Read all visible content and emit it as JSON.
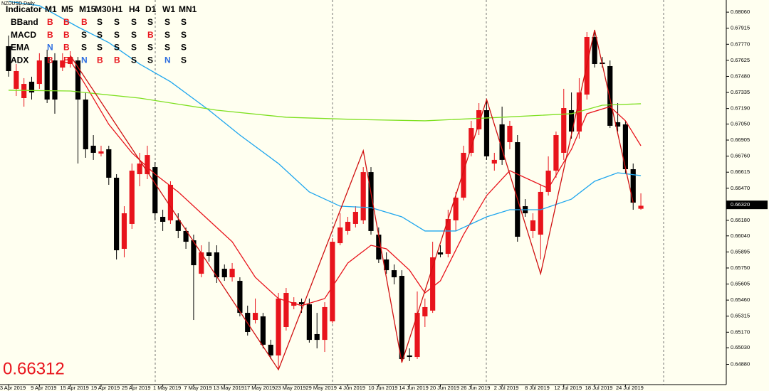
{
  "chart_data": {
    "type": "candlestick",
    "title": "NZDUSD,Daily",
    "categories": [
      "3 Apr 2019",
      null,
      null,
      null,
      "9 Apr 2019",
      null,
      null,
      null,
      "15 Apr 2019",
      null,
      null,
      null,
      "19 Apr 2019",
      null,
      null,
      null,
      "25 Apr 2019",
      null,
      null,
      null,
      "1 May 2019",
      null,
      null,
      null,
      "7 May 2019",
      null,
      null,
      null,
      "13 May 2019",
      null,
      null,
      null,
      "17 May 2019",
      null,
      null,
      null,
      "23 May 2019",
      null,
      null,
      null,
      "29 May 2019",
      null,
      null,
      null,
      "4 Jun 2019",
      null,
      null,
      null,
      "10 Jun 2019",
      null,
      null,
      null,
      "14 Jun 2019",
      null,
      null,
      null,
      "20 Jun 2019",
      null,
      null,
      null,
      "26 Jun 2019",
      null,
      null,
      null,
      "2 Jul 2019",
      null,
      null,
      null,
      "8 Jul 2019",
      null,
      null,
      null,
      "12 Jul 2019",
      null,
      null,
      null,
      "18 Jul 2019",
      null,
      null,
      null,
      "24 Jul 2019",
      null,
      null
    ],
    "open": [
      0.67753,
      0.67368,
      0.67284,
      0.67432,
      0.67412,
      0.67656,
      0.67624,
      0.6756,
      0.67592,
      0.67624,
      0.67271,
      0.66854,
      0.66783,
      0.66822,
      0.66565,
      0.65923,
      0.66148,
      0.66597,
      0.66597,
      0.66661,
      0.66212,
      0.6618,
      0.6618,
      0.66084,
      0.66,
      0.65698,
      0.65891,
      0.65891,
      0.65743,
      0.65666,
      0.65634,
      0.65345,
      0.65281,
      0.65313,
      0.65057,
      0.6496,
      0.65217,
      0.65409,
      0.65441,
      0.65422,
      0.65153,
      0.65101,
      0.65268,
      0.65974,
      0.66084,
      0.66148,
      0.6618,
      0.66616,
      0.66051,
      0.65827,
      0.6573,
      0.65679,
      0.6496,
      0.64947,
      0.65313,
      0.65365,
      0.65891,
      0.65878,
      0.6618,
      0.66385,
      0.6679,
      0.67002,
      0.67175,
      0.66693,
      0.67047,
      0.66886,
      0.66886,
      0.66308,
      0.66084,
      0.66051,
      0.66437,
      0.66629,
      0.6679,
      0.67175,
      0.66982,
      0.67316,
      0.67836,
      0.67605,
      0.67573,
      0.67066,
      0.67047,
      0.66642,
      0.66285
    ],
    "high": [
      0.67849,
      0.67592,
      0.67464,
      0.67477,
      0.67689,
      0.67721,
      0.67689,
      0.67689,
      0.67708,
      0.67656,
      0.67335,
      0.6695,
      0.66854,
      0.66854,
      0.66597,
      0.66308,
      0.66693,
      0.6679,
      0.66854,
      0.66706,
      0.66276,
      0.66533,
      0.66244,
      0.66116,
      0.66051,
      0.65955,
      0.65987,
      0.65955,
      0.65782,
      0.65795,
      0.65666,
      0.6541,
      0.65474,
      0.65345,
      0.65102,
      0.65525,
      0.6557,
      0.65486,
      0.65474,
      0.65474,
      0.65345,
      0.65441,
      0.66019,
      0.66244,
      0.66212,
      0.66308,
      0.66661,
      0.66661,
      0.66116,
      0.65891,
      0.65782,
      0.6573,
      0.65024,
      0.65538,
      0.65474,
      0.65987,
      0.65955,
      0.66276,
      0.66437,
      0.66854,
      0.67079,
      0.67239,
      0.67271,
      0.6679,
      0.67207,
      0.67079,
      0.6695,
      0.66372,
      0.66244,
      0.66501,
      0.66758,
      0.66982,
      0.67368,
      0.67335,
      0.67464,
      0.67881,
      0.679,
      0.67656,
      0.67624,
      0.67239,
      0.67079,
      0.66693,
      0.66424
    ],
    "low": [
      0.67477,
      0.67303,
      0.67207,
      0.67271,
      0.67368,
      0.67239,
      0.67143,
      0.67528,
      0.6756,
      0.66693,
      0.66745,
      0.66726,
      0.66758,
      0.66501,
      0.65827,
      0.65846,
      0.66103,
      0.66488,
      0.66552,
      0.6618,
      0.66084,
      0.66148,
      0.66019,
      0.65923,
      0.65281,
      0.65666,
      0.65807,
      0.65615,
      0.65634,
      0.65628,
      0.65313,
      0.6514,
      0.65249,
      0.65024,
      0.64928,
      0.64832,
      0.65185,
      0.65377,
      0.65345,
      0.65076,
      0.65024,
      0.64992,
      0.65249,
      0.65955,
      0.66051,
      0.66116,
      0.66148,
      0.66051,
      0.65795,
      0.65698,
      0.65602,
      0.64896,
      0.64909,
      0.64928,
      0.65217,
      0.65345,
      0.65846,
      0.65846,
      0.66084,
      0.6636,
      0.66758,
      0.6695,
      0.66726,
      0.66629,
      0.66681,
      0.66822,
      0.65987,
      0.66212,
      0.66019,
      0.65827,
      0.66404,
      0.66565,
      0.66726,
      0.66918,
      0.66918,
      0.67271,
      0.6756,
      0.6756,
      0.67014,
      0.66982,
      0.66597,
      0.66276,
      0.66276
    ],
    "close": [
      0.67528,
      0.67528,
      0.67412,
      0.67335,
      0.67624,
      0.67271,
      0.67271,
      0.67624,
      0.67656,
      0.67271,
      0.66822,
      0.6679,
      0.66803,
      0.66565,
      0.6591,
      0.66244,
      0.66629,
      0.66693,
      0.6677,
      0.66244,
      0.66167,
      0.66501,
      0.66084,
      0.65987,
      0.65775,
      0.65891,
      0.65859,
      0.65666,
      0.65666,
      0.65743,
      0.65345,
      0.65172,
      0.65345,
      0.65057,
      0.6496,
      0.65474,
      0.65525,
      0.65441,
      0.65422,
      0.65101,
      0.65101,
      0.65397,
      0.65987,
      0.66116,
      0.66167,
      0.66257,
      0.66616,
      0.66084,
      0.65827,
      0.6573,
      0.65666,
      0.64928,
      0.64947,
      0.65345,
      0.65397,
      0.65846,
      0.65872,
      0.66193,
      0.66385,
      0.6679,
      0.67014,
      0.67175,
      0.66758,
      0.66726,
      0.66726,
      0.67034,
      0.66032,
      0.66244,
      0.6618,
      0.66437,
      0.66629,
      0.6695,
      0.67194,
      0.66982,
      0.67335,
      0.67836,
      0.67592,
      0.67592,
      0.67034,
      0.67027,
      0.66642,
      0.6634,
      0.66312
    ],
    "up_color": "#e8141c",
    "down_color": "#000000",
    "overlays": [
      {
        "color": "#e8141c",
        "x": [
          8,
          10,
          13,
          16,
          19,
          22,
          26,
          29,
          32,
          35,
          38,
          41,
          44,
          47,
          49,
          52,
          54,
          56,
          59,
          62,
          65,
          68,
          70,
          73,
          75,
          78,
          80,
          82
        ],
        "values": [
          0.67624,
          0.674,
          0.67047,
          0.6679,
          0.66597,
          0.66437,
          0.6618,
          0.65987,
          0.65666,
          0.65474,
          0.6541,
          0.65474,
          0.65795,
          0.65955,
          0.65923,
          0.6573,
          0.65525,
          0.65634,
          0.66051,
          0.66404,
          0.66629,
          0.66533,
          0.66469,
          0.66822,
          0.67143,
          0.67207,
          0.67079,
          0.66854
        ]
      },
      {
        "color": "#1ea6ee",
        "x": [
          0,
          4,
          9,
          13,
          17,
          21,
          26,
          30,
          35,
          39,
          43,
          47,
          51,
          54,
          58,
          62,
          65,
          69,
          73,
          76,
          79,
          82
        ],
        "values": [
          0.68157,
          0.68119,
          0.67926,
          0.67785,
          0.67592,
          0.67432,
          0.67175,
          0.6695,
          0.66693,
          0.66437,
          0.66308,
          0.66295,
          0.66212,
          0.66084,
          0.66084,
          0.66212,
          0.66276,
          0.66276,
          0.66372,
          0.66533,
          0.6661,
          0.66584
        ]
      },
      {
        "color": "#7ee020",
        "x": [
          0,
          8,
          17,
          27,
          36,
          45,
          54,
          64,
          73,
          77,
          82
        ],
        "values": [
          0.67355,
          0.67348,
          0.67284,
          0.67175,
          0.67111,
          0.67091,
          0.67079,
          0.67111,
          0.67143,
          0.6722,
          0.67233
        ]
      },
      {
        "color": "#d01010",
        "x": [
          8,
          35,
          46,
          51,
          62,
          69,
          76,
          81
        ],
        "values": [
          0.67669,
          0.64832,
          0.66809,
          0.64896,
          0.67271,
          0.65698,
          0.679,
          0.6634
        ]
      }
    ],
    "ylim": [
      0.64697,
      0.68157
    ],
    "yticks": [
      {
        "value": 0.6806,
        "label": "0.68060"
      },
      {
        "value": 0.67915,
        "label": "0.67915"
      },
      {
        "value": 0.6777,
        "label": "0.67770"
      },
      {
        "value": 0.67625,
        "label": "0.67625"
      },
      {
        "value": 0.6748,
        "label": "0.67480"
      },
      {
        "value": 0.67335,
        "label": "0.67335"
      },
      {
        "value": 0.6719,
        "label": "0.67190"
      },
      {
        "value": 0.6705,
        "label": "0.67050"
      },
      {
        "value": 0.66905,
        "label": "0.66905"
      },
      {
        "value": 0.6676,
        "label": "0.66760"
      },
      {
        "value": 0.66615,
        "label": "0.66615"
      },
      {
        "value": 0.6647,
        "label": "0.66470"
      },
      {
        "value": 0.6618,
        "label": "0.66180"
      },
      {
        "value": 0.6604,
        "label": "0.66040"
      },
      {
        "value": 0.65895,
        "label": "0.65895"
      },
      {
        "value": 0.6575,
        "label": "0.65750"
      },
      {
        "value": 0.65605,
        "label": "0.65605"
      },
      {
        "value": 0.6546,
        "label": "0.65460"
      },
      {
        "value": 0.65315,
        "label": "0.65315"
      },
      {
        "value": 0.6517,
        "label": "0.65170"
      },
      {
        "value": 0.6503,
        "label": "0.65030"
      },
      {
        "value": 0.6488,
        "label": "0.64880"
      }
    ],
    "current_price": {
      "value": 0.6632,
      "label": "0.66320"
    },
    "last_price": 0.66312
  },
  "indicator_table": {
    "header": [
      "Indicator",
      "M1",
      "M5",
      "M15",
      "M30",
      "H1",
      "H4",
      "D1",
      "W1",
      "MN1"
    ],
    "rows": [
      [
        "BBand",
        "B",
        "B",
        "B",
        "S",
        "S",
        "S",
        "S",
        "S",
        "S"
      ],
      [
        "MACD",
        "B",
        "B",
        "S",
        "S",
        "S",
        "S",
        "B",
        "S",
        "S"
      ],
      [
        "EMA",
        "N",
        "B",
        "S",
        "S",
        "S",
        "S",
        "S",
        "S",
        "S"
      ],
      [
        "ADX",
        "B",
        "B",
        "N",
        "B",
        "B",
        "S",
        "S",
        "N",
        "S"
      ]
    ],
    "signal_colors": {
      "B": "#e8141c",
      "S": "#000000",
      "N": "#2f6fe0"
    }
  }
}
